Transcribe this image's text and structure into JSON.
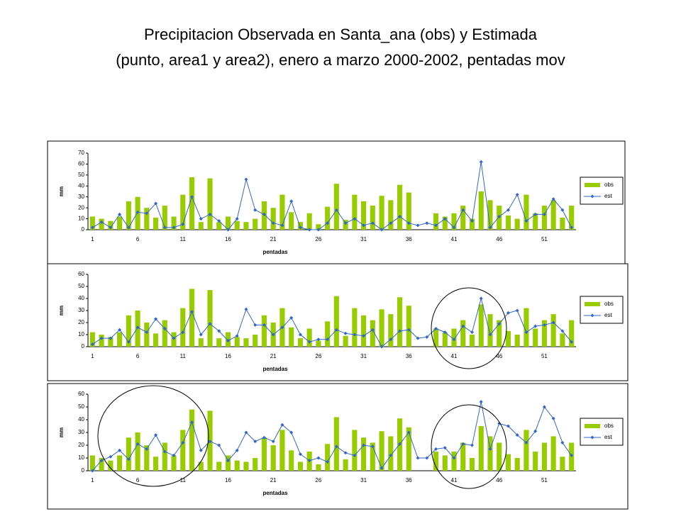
{
  "title": [
    "Precipitacion Observada en Santa_ana (obs) y Estimada",
    "(punto, area1 y area2), enero a marzo 2000-2002, pentadas mov"
  ],
  "chart_data": [
    {
      "type": "bar-line",
      "xlabel": "pentadas",
      "ylabel": "mm",
      "legend": "right",
      "grid": false,
      "categories": [
        1,
        null,
        null,
        null,
        null,
        6,
        null,
        null,
        null,
        null,
        11,
        null,
        null,
        null,
        null,
        16,
        null,
        null,
        null,
        null,
        21,
        null,
        null,
        null,
        null,
        26,
        null,
        null,
        null,
        null,
        31,
        null,
        null,
        null,
        null,
        36,
        null,
        null,
        null,
        null,
        41,
        null,
        null,
        null,
        null,
        46,
        null,
        null,
        null,
        null,
        51,
        null,
        null,
        null
      ],
      "ylim": [
        0,
        70
      ],
      "yticks": [
        0,
        10,
        20,
        30,
        40,
        50,
        60,
        70
      ],
      "series": [
        {
          "name": "obs",
          "kind": "bar",
          "color": "#99cc00",
          "values": [
            12,
            10,
            8,
            12,
            26,
            30,
            20,
            11,
            22,
            12,
            32,
            48,
            7,
            47,
            7,
            12,
            8,
            7,
            10,
            26,
            20,
            32,
            16,
            7,
            15,
            5,
            21,
            42,
            9,
            32,
            26,
            22,
            31,
            27,
            41,
            34,
            0,
            0,
            15,
            12,
            15,
            22,
            10,
            35,
            27,
            22,
            13,
            10,
            32,
            15,
            22,
            27,
            11,
            22
          ]
        },
        {
          "name": "est",
          "kind": "line",
          "color": "#3366cc",
          "values": [
            2,
            7,
            2,
            14,
            2,
            16,
            15,
            24,
            2,
            2,
            5,
            30,
            10,
            14,
            8,
            0,
            10,
            46,
            18,
            14,
            6,
            4,
            26,
            2,
            0,
            0,
            6,
            18,
            6,
            10,
            4,
            6,
            0,
            6,
            12,
            6,
            4,
            6,
            4,
            10,
            2,
            18,
            8,
            62,
            2,
            12,
            18,
            32,
            8,
            14,
            14,
            28,
            18,
            2
          ]
        }
      ]
    },
    {
      "type": "bar-line",
      "xlabel": "pentadas",
      "ylabel": "mm",
      "legend": "right",
      "grid": false,
      "categories": [
        1,
        null,
        null,
        null,
        null,
        6,
        null,
        null,
        null,
        null,
        11,
        null,
        null,
        null,
        null,
        16,
        null,
        null,
        null,
        null,
        21,
        null,
        null,
        null,
        null,
        26,
        null,
        null,
        null,
        null,
        31,
        null,
        null,
        null,
        null,
        36,
        null,
        null,
        null,
        null,
        41,
        null,
        null,
        null,
        null,
        46,
        null,
        null,
        null,
        null,
        51,
        null,
        null,
        null
      ],
      "ylim": [
        0,
        60
      ],
      "yticks": [
        0,
        10,
        20,
        30,
        40,
        50,
        60
      ],
      "series": [
        {
          "name": "obs",
          "kind": "bar",
          "color": "#99cc00",
          "values": [
            12,
            10,
            8,
            12,
            26,
            30,
            20,
            11,
            22,
            12,
            32,
            48,
            7,
            47,
            7,
            12,
            8,
            7,
            10,
            26,
            20,
            32,
            16,
            7,
            15,
            5,
            21,
            42,
            9,
            32,
            26,
            22,
            31,
            27,
            41,
            34,
            0,
            0,
            15,
            12,
            15,
            22,
            10,
            35,
            27,
            22,
            13,
            10,
            32,
            15,
            22,
            27,
            11,
            22
          ]
        },
        {
          "name": "est",
          "kind": "line",
          "color": "#3366cc",
          "values": [
            2,
            7,
            7,
            14,
            4,
            16,
            12,
            23,
            15,
            7,
            12,
            29,
            10,
            19,
            13,
            5,
            9,
            31,
            18,
            18,
            10,
            16,
            24,
            10,
            4,
            6,
            6,
            14,
            11,
            10,
            9,
            14,
            0,
            6,
            13,
            14,
            7,
            8,
            15,
            12,
            6,
            17,
            12,
            40,
            10,
            19,
            28,
            30,
            12,
            17,
            18,
            20,
            13,
            4
          ]
        }
      ]
    },
    {
      "type": "bar-line",
      "xlabel": "pentadas",
      "ylabel": "mm",
      "legend": "right",
      "grid": false,
      "categories": [
        1,
        null,
        null,
        null,
        null,
        6,
        null,
        null,
        null,
        null,
        11,
        null,
        null,
        null,
        null,
        16,
        null,
        null,
        null,
        null,
        21,
        null,
        null,
        null,
        null,
        26,
        null,
        null,
        null,
        null,
        31,
        null,
        null,
        null,
        null,
        36,
        null,
        null,
        null,
        null,
        41,
        null,
        null,
        null,
        null,
        46,
        null,
        null,
        null,
        null,
        51,
        null,
        null,
        null
      ],
      "ylim": [
        0,
        60
      ],
      "yticks": [
        0,
        10,
        20,
        30,
        40,
        50,
        60
      ],
      "series": [
        {
          "name": "obs",
          "kind": "bar",
          "color": "#99cc00",
          "values": [
            12,
            10,
            8,
            12,
            26,
            30,
            20,
            11,
            22,
            12,
            32,
            48,
            7,
            47,
            7,
            12,
            8,
            7,
            10,
            26,
            20,
            32,
            16,
            7,
            15,
            5,
            21,
            42,
            9,
            32,
            26,
            22,
            31,
            27,
            41,
            34,
            0,
            0,
            15,
            12,
            15,
            22,
            10,
            35,
            27,
            22,
            13,
            10,
            32,
            15,
            22,
            27,
            11,
            22
          ]
        },
        {
          "name": "est",
          "kind": "line",
          "color": "#3366cc",
          "values": [
            0,
            8,
            11,
            16,
            9,
            21,
            17,
            28,
            15,
            12,
            22,
            38,
            16,
            23,
            20,
            8,
            16,
            30,
            23,
            26,
            23,
            36,
            30,
            13,
            8,
            10,
            7,
            19,
            14,
            12,
            20,
            19,
            2,
            12,
            21,
            30,
            10,
            10,
            17,
            18,
            10,
            21,
            20,
            54,
            17,
            37,
            35,
            28,
            22,
            31,
            50,
            41,
            22,
            12
          ]
        }
      ]
    }
  ]
}
